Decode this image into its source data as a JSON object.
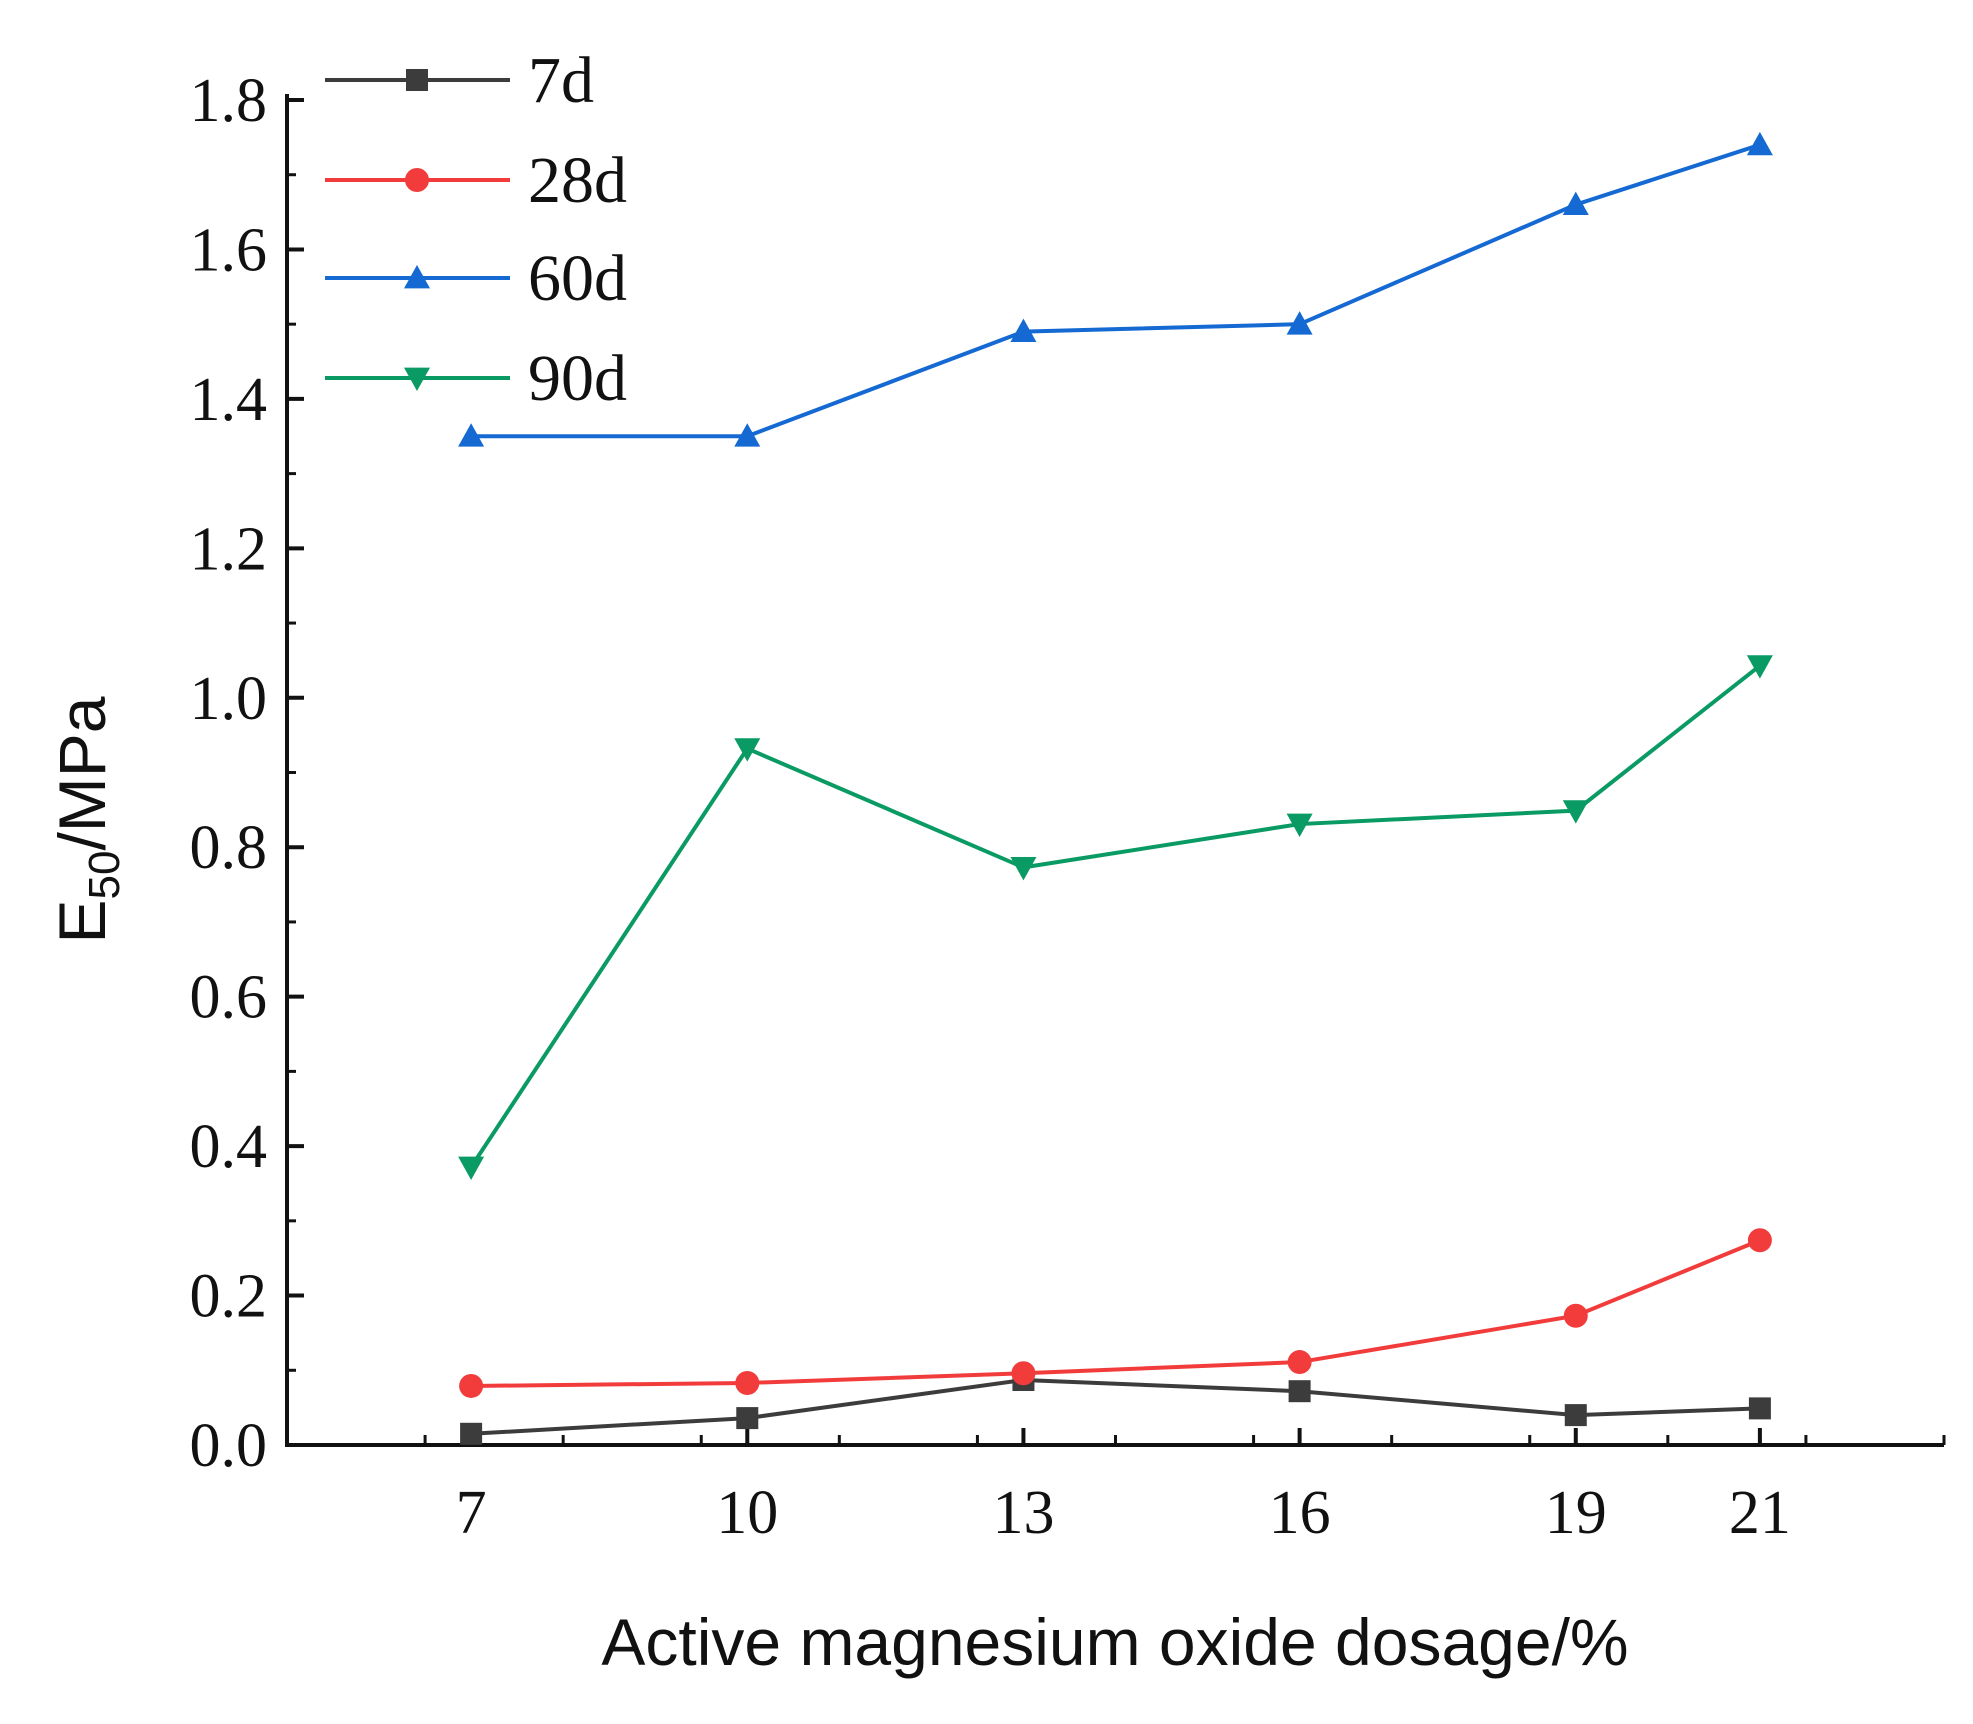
{
  "chart_data": {
    "type": "line",
    "title": "",
    "xlabel": "Active magnesium oxide dosage/%",
    "ylabel_main": "E",
    "ylabel_sub": "50",
    "ylabel_tail": "/MPa",
    "x": [
      7,
      10,
      13,
      16,
      19,
      21
    ],
    "x_tick_labels": [
      "7",
      "10",
      "13",
      "16",
      "19",
      "21"
    ],
    "xlim": [
      5,
      23
    ],
    "ylim": [
      0,
      1.8
    ],
    "y_ticks": [
      0.0,
      0.2,
      0.4,
      0.6,
      0.8,
      1.0,
      1.2,
      1.4,
      1.6,
      1.8
    ],
    "y_tick_labels": [
      "0.0",
      "0.2",
      "0.4",
      "0.6",
      "0.8",
      "1.0",
      "1.2",
      "1.4",
      "1.6",
      "1.8"
    ],
    "grid": false,
    "legend_position": "top-left",
    "series": [
      {
        "name": "7d",
        "color": "#3c3c3c",
        "marker": "square",
        "values": [
          0.015,
          0.036,
          0.087,
          0.072,
          0.04,
          0.049
        ]
      },
      {
        "name": "28d",
        "color": "#f23c3c",
        "marker": "circle",
        "values": [
          0.079,
          0.083,
          0.096,
          0.111,
          0.173,
          0.274
        ]
      },
      {
        "name": "60d",
        "color": "#1469d2",
        "marker": "triangle-up",
        "values": [
          1.35,
          1.35,
          1.49,
          1.5,
          1.66,
          1.74
        ]
      },
      {
        "name": "90d",
        "color": "#0a9a64",
        "marker": "triangle-down",
        "values": [
          0.372,
          0.932,
          0.773,
          0.831,
          0.849,
          1.043
        ]
      }
    ]
  }
}
